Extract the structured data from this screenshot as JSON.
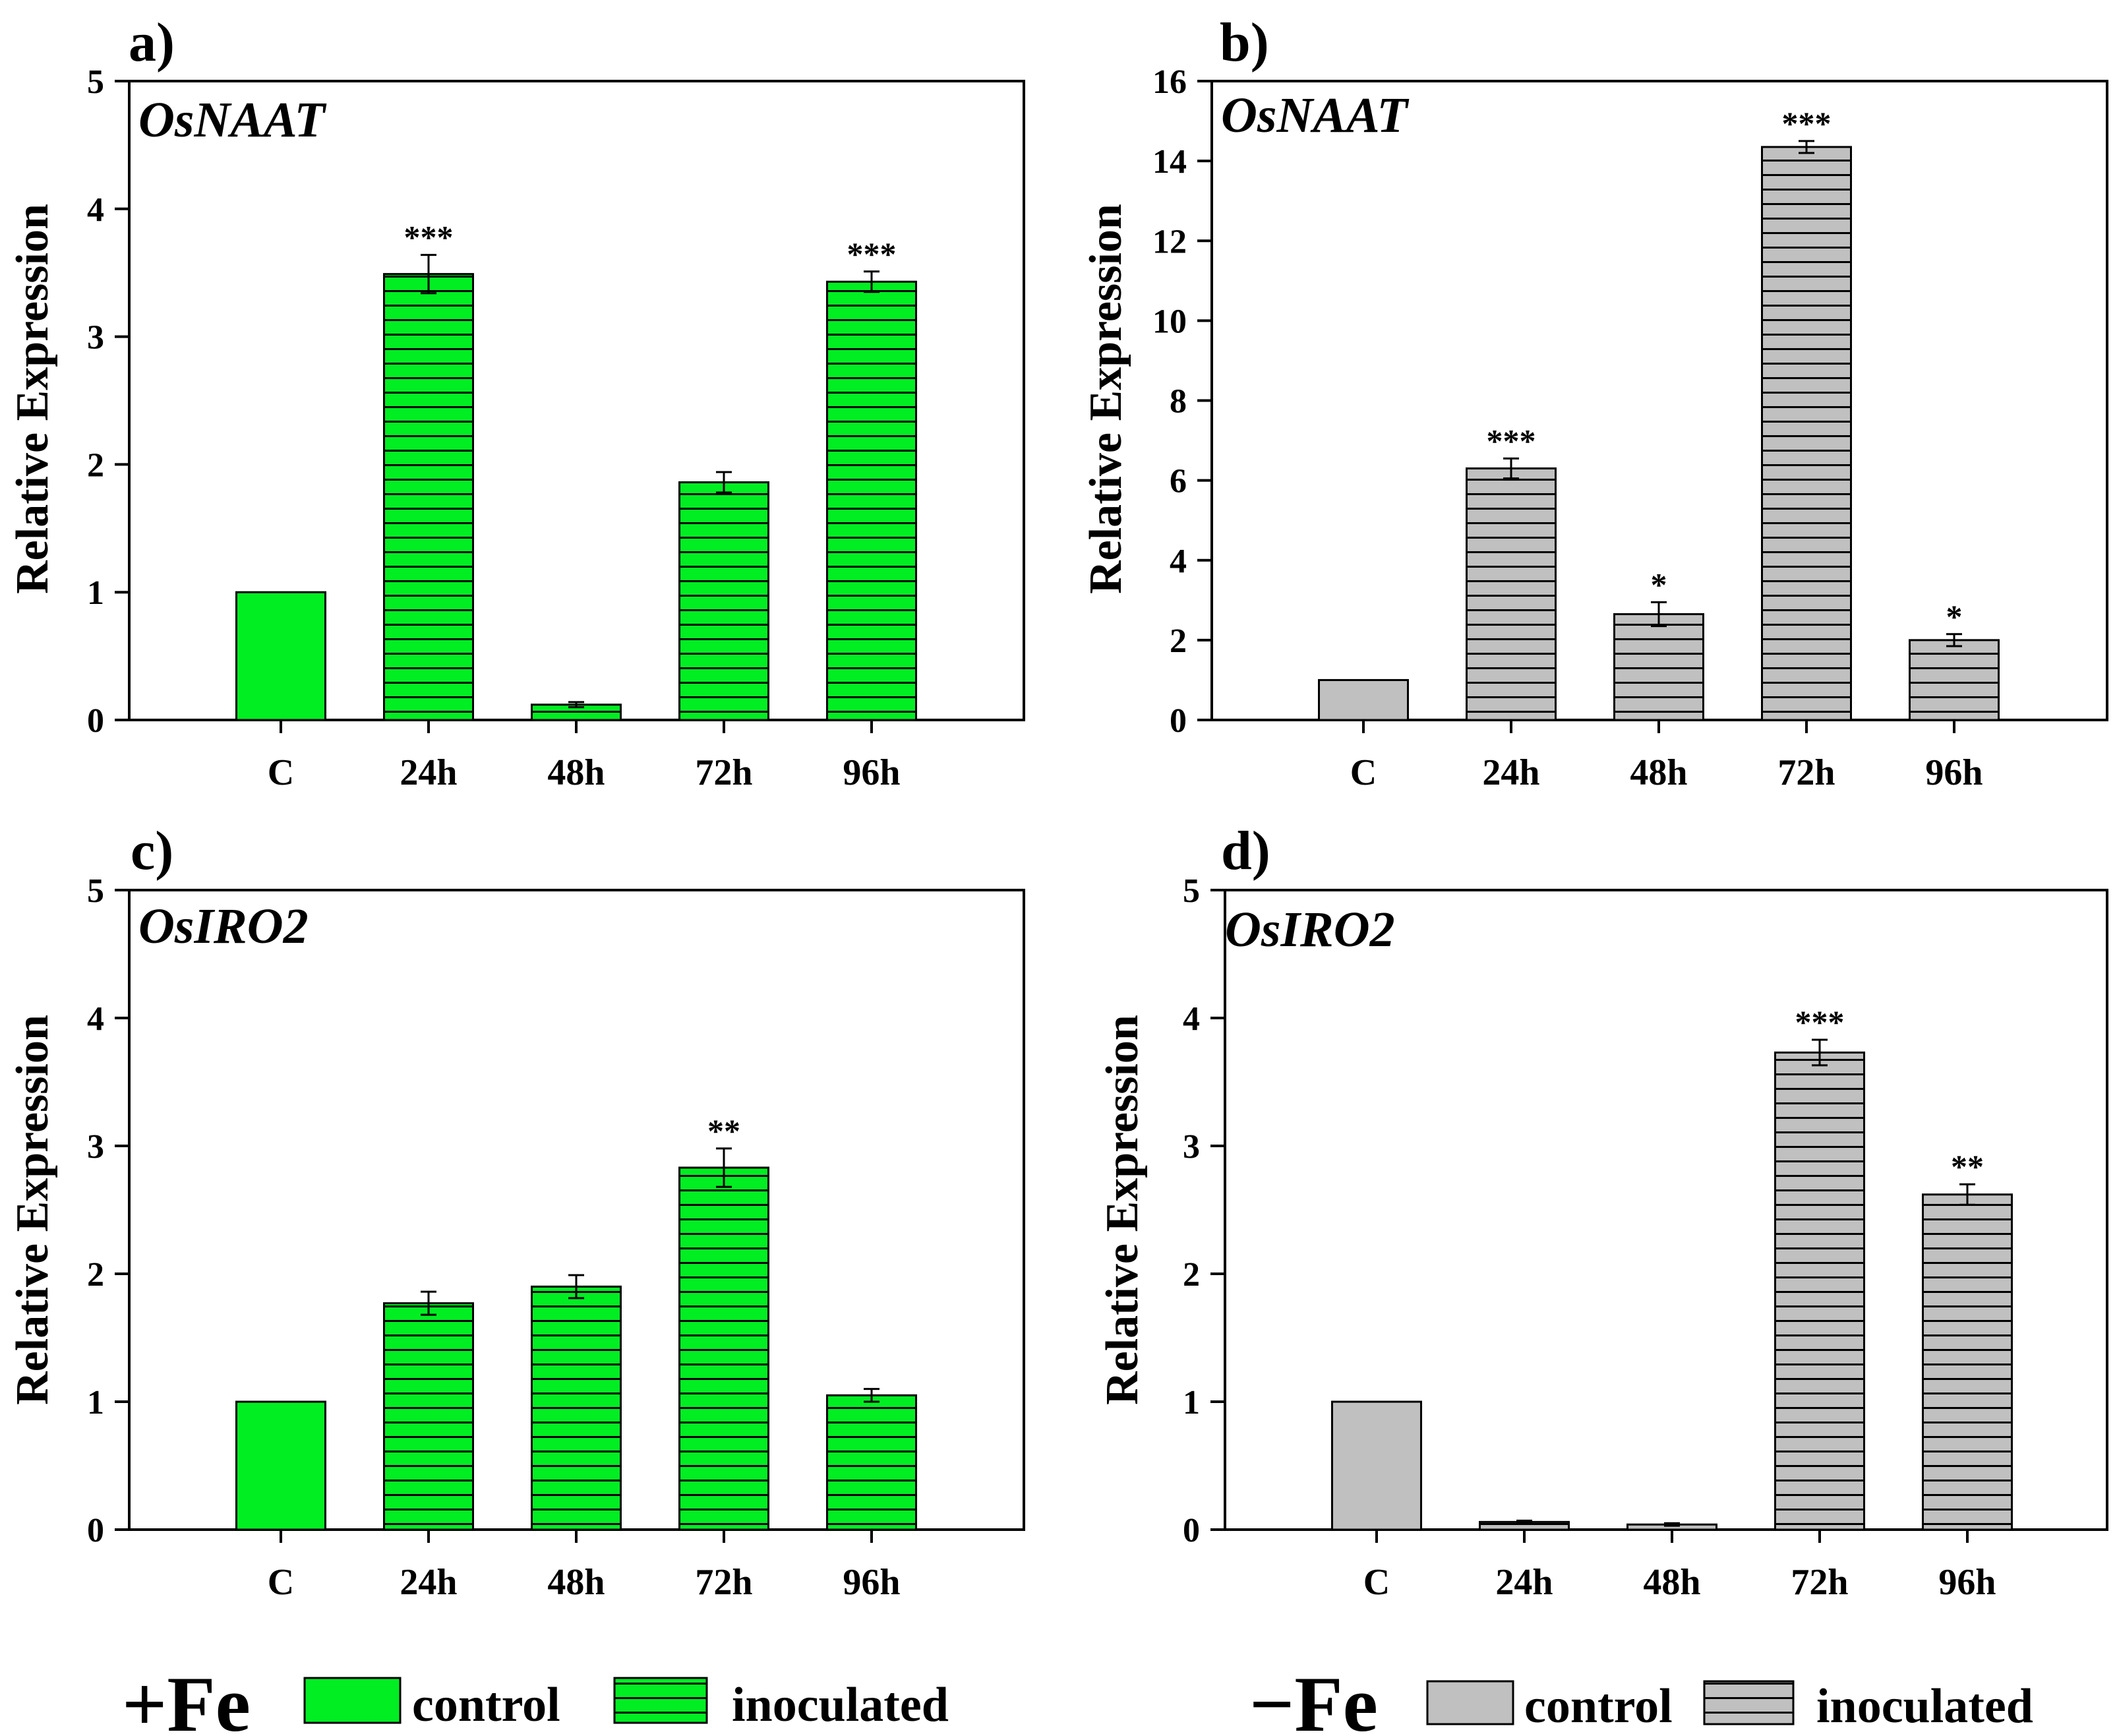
{
  "colors": {
    "fe_plus": "#00EE22",
    "fe_minus": "#C0C0C0",
    "axis": "#000000",
    "stripe": "#000000"
  },
  "legend": {
    "plus": {
      "sign": "+Fe",
      "control": "control",
      "inoculated": "inoculated"
    },
    "minus": {
      "sign": "−Fe",
      "control": "control",
      "inoculated": "inoculated"
    }
  },
  "chart_data": [
    {
      "type": "bar",
      "panel": "a)",
      "title": "OsNAAT",
      "ylabel": "Relative Expression",
      "categories": [
        "C",
        "24h",
        "48h",
        "72h",
        "96h"
      ],
      "values": [
        1.0,
        3.49,
        0.12,
        1.86,
        3.43
      ],
      "errors": [
        0,
        0.15,
        0.02,
        0.08,
        0.08
      ],
      "significance": [
        "",
        "***",
        "",
        "",
        "***"
      ],
      "ylim": [
        0,
        5
      ],
      "yticks": [
        "0",
        "1",
        "2",
        "3",
        "4",
        "5"
      ],
      "condition": "+Fe",
      "color": "#00EE22"
    },
    {
      "type": "bar",
      "panel": "b)",
      "title": "OsNAAT",
      "ylabel": "Relative Expression",
      "categories": [
        "C",
        "24h",
        "48h",
        "72h",
        "96h"
      ],
      "values": [
        1.0,
        6.3,
        2.65,
        14.35,
        2.0
      ],
      "errors": [
        0,
        0.25,
        0.3,
        0.15,
        0.15
      ],
      "significance": [
        "",
        "***",
        "*",
        "***",
        "*"
      ],
      "ylim": [
        0,
        16
      ],
      "yticks": [
        "0",
        "2",
        "4",
        "6",
        "8",
        "10",
        "12",
        "14",
        "16"
      ],
      "condition": "-Fe",
      "color": "#C0C0C0"
    },
    {
      "type": "bar",
      "panel": "c)",
      "title": "OsIRO2",
      "ylabel": "Relative Expression",
      "categories": [
        "C",
        "24h",
        "48h",
        "72h",
        "96h"
      ],
      "values": [
        1.0,
        1.77,
        1.9,
        2.83,
        1.05
      ],
      "errors": [
        0,
        0.09,
        0.09,
        0.15,
        0.05
      ],
      "significance": [
        "",
        "",
        "",
        "**",
        ""
      ],
      "ylim": [
        0,
        5
      ],
      "yticks": [
        "0",
        "1",
        "2",
        "3",
        "4",
        "5"
      ],
      "condition": "+Fe",
      "color": "#00EE22"
    },
    {
      "type": "bar",
      "panel": "d)",
      "title": "OsIRO2",
      "ylabel": "Relative Expression",
      "categories": [
        "C",
        "24h",
        "48h",
        "72h",
        "96h"
      ],
      "values": [
        1.0,
        0.06,
        0.04,
        3.73,
        2.62
      ],
      "errors": [
        0,
        0.01,
        0.01,
        0.1,
        0.08
      ],
      "significance": [
        "",
        "",
        "",
        "***",
        "**"
      ],
      "ylim": [
        0,
        5
      ],
      "yticks": [
        "0",
        "1",
        "2",
        "3",
        "4",
        "5"
      ],
      "condition": "-Fe",
      "color": "#C0C0C0"
    }
  ]
}
